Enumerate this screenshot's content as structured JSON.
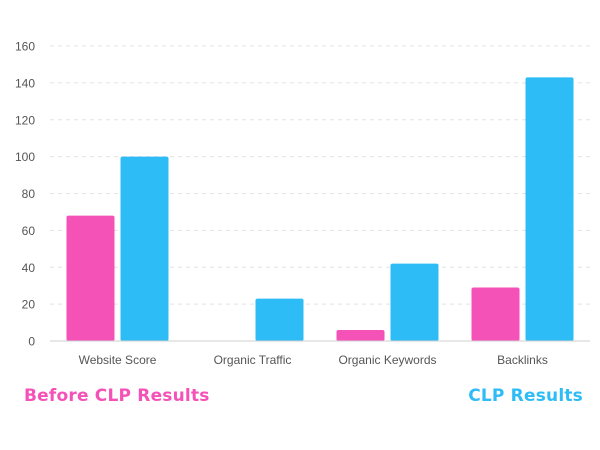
{
  "chart_data": {
    "type": "bar",
    "categories": [
      "Website Score",
      "Organic Traffic",
      "Organic Keywords",
      "Backlinks"
    ],
    "series": [
      {
        "name": "Before CLP Results",
        "values": [
          68,
          0,
          6,
          29
        ],
        "color": "#f552b7"
      },
      {
        "name": "CLP Results",
        "values": [
          100,
          23,
          42,
          143
        ],
        "color": "#2ebcf6"
      }
    ],
    "ylim": [
      0,
      160
    ],
    "yticks": [
      0,
      20,
      40,
      60,
      80,
      100,
      120,
      140,
      160
    ],
    "grid": true,
    "legend_position": "bottom"
  },
  "legend": {
    "before_label": "Before CLP Results",
    "after_label": "CLP Results"
  }
}
